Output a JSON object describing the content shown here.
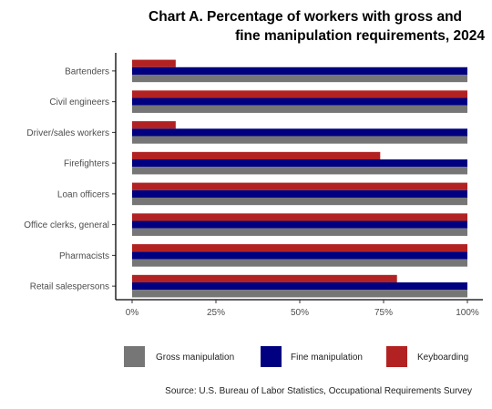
{
  "title_line1": "Chart A. Percentage of workers with gross and",
  "title_line2": "fine manipulation requirements,  2024",
  "source": "Source: U.S. Bureau of Labor Statistics, Occupational Requirements Survey",
  "colors": {
    "gross": "#767676",
    "fine": "#000080",
    "keyboarding": "#b22222",
    "axis": "#000000",
    "tick_text": "#4d4d4d"
  },
  "chart_data": {
    "type": "bar",
    "orientation": "horizontal",
    "categories": [
      "Bartenders",
      "Civil engineers",
      "Driver/sales workers",
      "Firefighters",
      "Loan officers",
      "Office clerks, general",
      "Pharmacists",
      "Retail salespersons"
    ],
    "series": [
      {
        "name": "Gross manipulation",
        "values": [
          100,
          100,
          100,
          100,
          100,
          100,
          100,
          100
        ]
      },
      {
        "name": "Fine manipulation",
        "values": [
          100,
          100,
          100,
          100,
          100,
          100,
          100,
          100
        ]
      },
      {
        "name": "Keyboarding",
        "values": [
          13,
          100,
          13,
          74,
          100,
          100,
          100,
          79
        ]
      }
    ],
    "xlim": [
      0,
      100
    ],
    "x_ticks": [
      "0%",
      "25%",
      "50%",
      "75%",
      "100%"
    ],
    "x_tick_values": [
      0,
      25,
      50,
      75,
      100
    ],
    "grid": false,
    "legend_position": "bottom"
  }
}
